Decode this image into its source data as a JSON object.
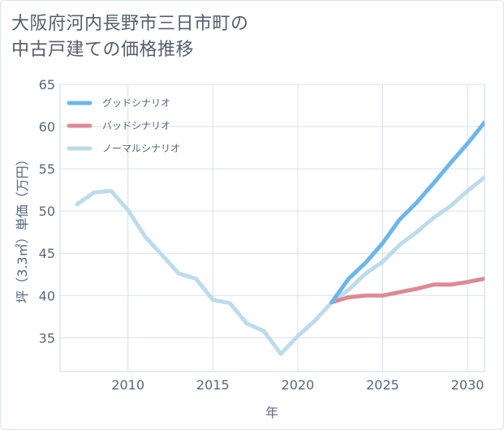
{
  "title_lines": [
    "大阪府河内長野市三日市町の",
    "中古戸建ての価格推移"
  ],
  "chart_data": {
    "type": "line",
    "xlabel": "年",
    "ylabel": "坪（3.3㎡）単価（万円）",
    "xlim": [
      2006,
      2031
    ],
    "ylim": [
      31,
      65
    ],
    "x_ticks": [
      2010,
      2015,
      2020,
      2025,
      2030
    ],
    "y_ticks": [
      35,
      40,
      45,
      50,
      55,
      60,
      65
    ],
    "grid": true,
    "legend_position": "top-left",
    "series": [
      {
        "name": "グッドシナリオ",
        "color": "#6cb6ea",
        "x": [
          2022,
          2023,
          2024,
          2025,
          2026,
          2027,
          2028,
          2029,
          2030,
          2031
        ],
        "values": [
          39.2,
          42.0,
          43.9,
          46.2,
          49.0,
          51.0,
          53.3,
          55.7,
          58.0,
          60.5
        ]
      },
      {
        "name": "バッドシナリオ",
        "color": "#dd8a92",
        "x": [
          2022,
          2023,
          2024,
          2025,
          2026,
          2027,
          2028,
          2029,
          2030,
          2031
        ],
        "values": [
          39.2,
          39.8,
          40.0,
          40.0,
          40.4,
          40.8,
          41.3,
          41.3,
          41.6,
          42.0
        ]
      },
      {
        "name": "ノーマルシナリオ",
        "color": "#bcdcea",
        "x": [
          2007,
          2008,
          2009,
          2010,
          2011,
          2012,
          2013,
          2014,
          2015,
          2016,
          2017,
          2018,
          2019,
          2020,
          2021,
          2022,
          2023,
          2024,
          2025,
          2026,
          2027,
          2028,
          2029,
          2030,
          2031
        ],
        "values": [
          50.8,
          52.2,
          52.4,
          50.1,
          47.0,
          44.8,
          42.6,
          42.0,
          39.5,
          39.1,
          36.7,
          35.8,
          33.1,
          35.2,
          37.0,
          39.2,
          40.7,
          42.6,
          44.0,
          46.0,
          47.5,
          49.2,
          50.6,
          52.4,
          54.0
        ]
      }
    ]
  }
}
